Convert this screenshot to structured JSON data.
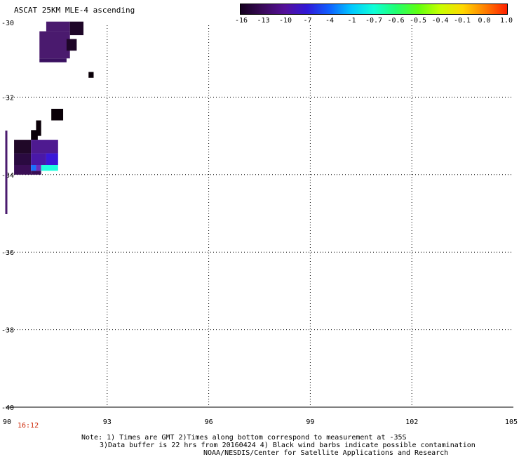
{
  "title": "ASCAT 25KM MLE-4 ascending",
  "colorbar": {
    "labels": [
      "-16",
      "-13",
      "-10",
      "-7",
      "-4",
      "-1",
      "-0.7",
      "-0.6",
      "-0.5",
      "-0.4",
      "-0.1",
      "0.0",
      "1.0"
    ],
    "colors": [
      "#14001e",
      "#3a0a5a",
      "#55109a",
      "#3018d8",
      "#1060ff",
      "#00c8ff",
      "#10ffd8",
      "#20ff70",
      "#60ff10",
      "#c8ff00",
      "#ffd800",
      "#ff8000",
      "#ff2000"
    ]
  },
  "axes": {
    "lat_labels": [
      "-30",
      "-32",
      "-34",
      "-36",
      "-38",
      "-40"
    ],
    "lon_labels": [
      "90",
      "93",
      "96",
      "99",
      "102",
      "105"
    ],
    "lat_range": [
      -40,
      -30
    ],
    "lon_range": [
      90,
      105
    ],
    "grid": "dotted"
  },
  "time_label": "16:12",
  "notes": {
    "line1": "Note: 1) Times are GMT 2)Times along bottom correspond to measurement at -35S",
    "line2": "3)Data buffer is 22 hrs from 20160424 4) Black wind barbs indicate possible contamination",
    "line3": "NOAA/NESDIS/Center for Satellite Applications and Research"
  },
  "data_cells": [
    {
      "lon": 91.2,
      "lat": -30.1,
      "value": -13,
      "color": "#4a1a6e"
    },
    {
      "lon": 91.6,
      "lat": -30.1,
      "value": -14,
      "color": "#3a0e55"
    },
    {
      "lon": 91.2,
      "lat": -30.6,
      "value": -13,
      "color": "#4a1a6e"
    },
    {
      "lon": 91.7,
      "lat": -30.6,
      "value": -15,
      "color": "#2a0838"
    },
    {
      "lon": 92.5,
      "lat": -31.4,
      "value": -16,
      "color": "#0a0008"
    },
    {
      "lon": 91.5,
      "lat": -32.4,
      "value": -16,
      "color": "#0a0008"
    },
    {
      "lon": 90.9,
      "lat": -32.8,
      "value": -16,
      "color": "#0a0008"
    },
    {
      "lon": 90.5,
      "lat": -33.2,
      "value": -15,
      "color": "#200828"
    },
    {
      "lon": 91.0,
      "lat": -33.2,
      "value": -12,
      "color": "#4e1a90"
    },
    {
      "lon": 91.0,
      "lat": -33.5,
      "value": -9,
      "color": "#3a1ad0"
    },
    {
      "lon": 90.5,
      "lat": -33.8,
      "value": -13,
      "color": "#3a0e55"
    },
    {
      "lon": 91.0,
      "lat": -33.8,
      "value": -1,
      "color": "#20ffe0"
    }
  ]
}
